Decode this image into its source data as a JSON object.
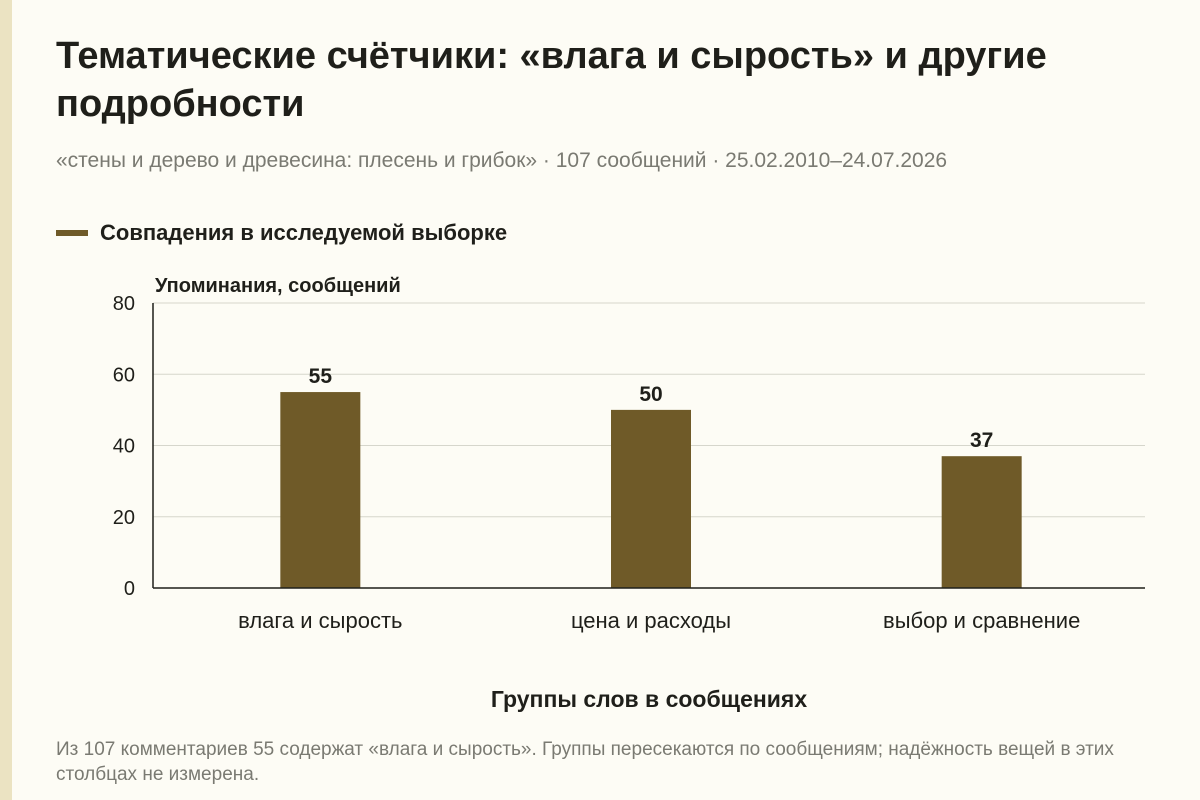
{
  "title": "Тематические счётчики: «влага и сырость» и другие подробности",
  "subtitle": "«стены и дерево и древесина: плесень и грибок» · 107 сообщений · 25.02.2010–24.07.2026",
  "legend": {
    "label": "Совпадения в исследуемой выборке"
  },
  "note": "Из 107 комментариев 55 содержат «влага и сырость». Группы пересекаются по сообщениям; надёжность вещей в этих столбцах не измерена.",
  "colors": {
    "bar": "#6f5a28",
    "grid": "#d6d6cc",
    "axis": "#1f1f1a",
    "text": "#1f1f1a",
    "muted": "#7a7a72",
    "background": "#fdfcf5",
    "edge_strip": "#ebe3c2"
  },
  "chart_data": {
    "type": "bar",
    "categories": [
      "влага и сырость",
      "цена и расходы",
      "выбор и сравнение"
    ],
    "values": [
      55,
      50,
      37
    ],
    "data_labels": [
      "55",
      "50",
      "37"
    ],
    "series": [
      {
        "name": "Совпадения в исследуемой выборке",
        "values": [
          55,
          50,
          37
        ]
      }
    ],
    "title": "",
    "xlabel": "Группы слов в сообщениях",
    "ylabel": "Упоминания, сообщений",
    "ylim": [
      0,
      80
    ],
    "yticks": [
      0,
      20,
      40,
      60,
      80
    ],
    "ytick_labels": [
      "0",
      "20",
      "40",
      "60",
      "80"
    ],
    "grid": true,
    "legend_position": "top-left"
  }
}
